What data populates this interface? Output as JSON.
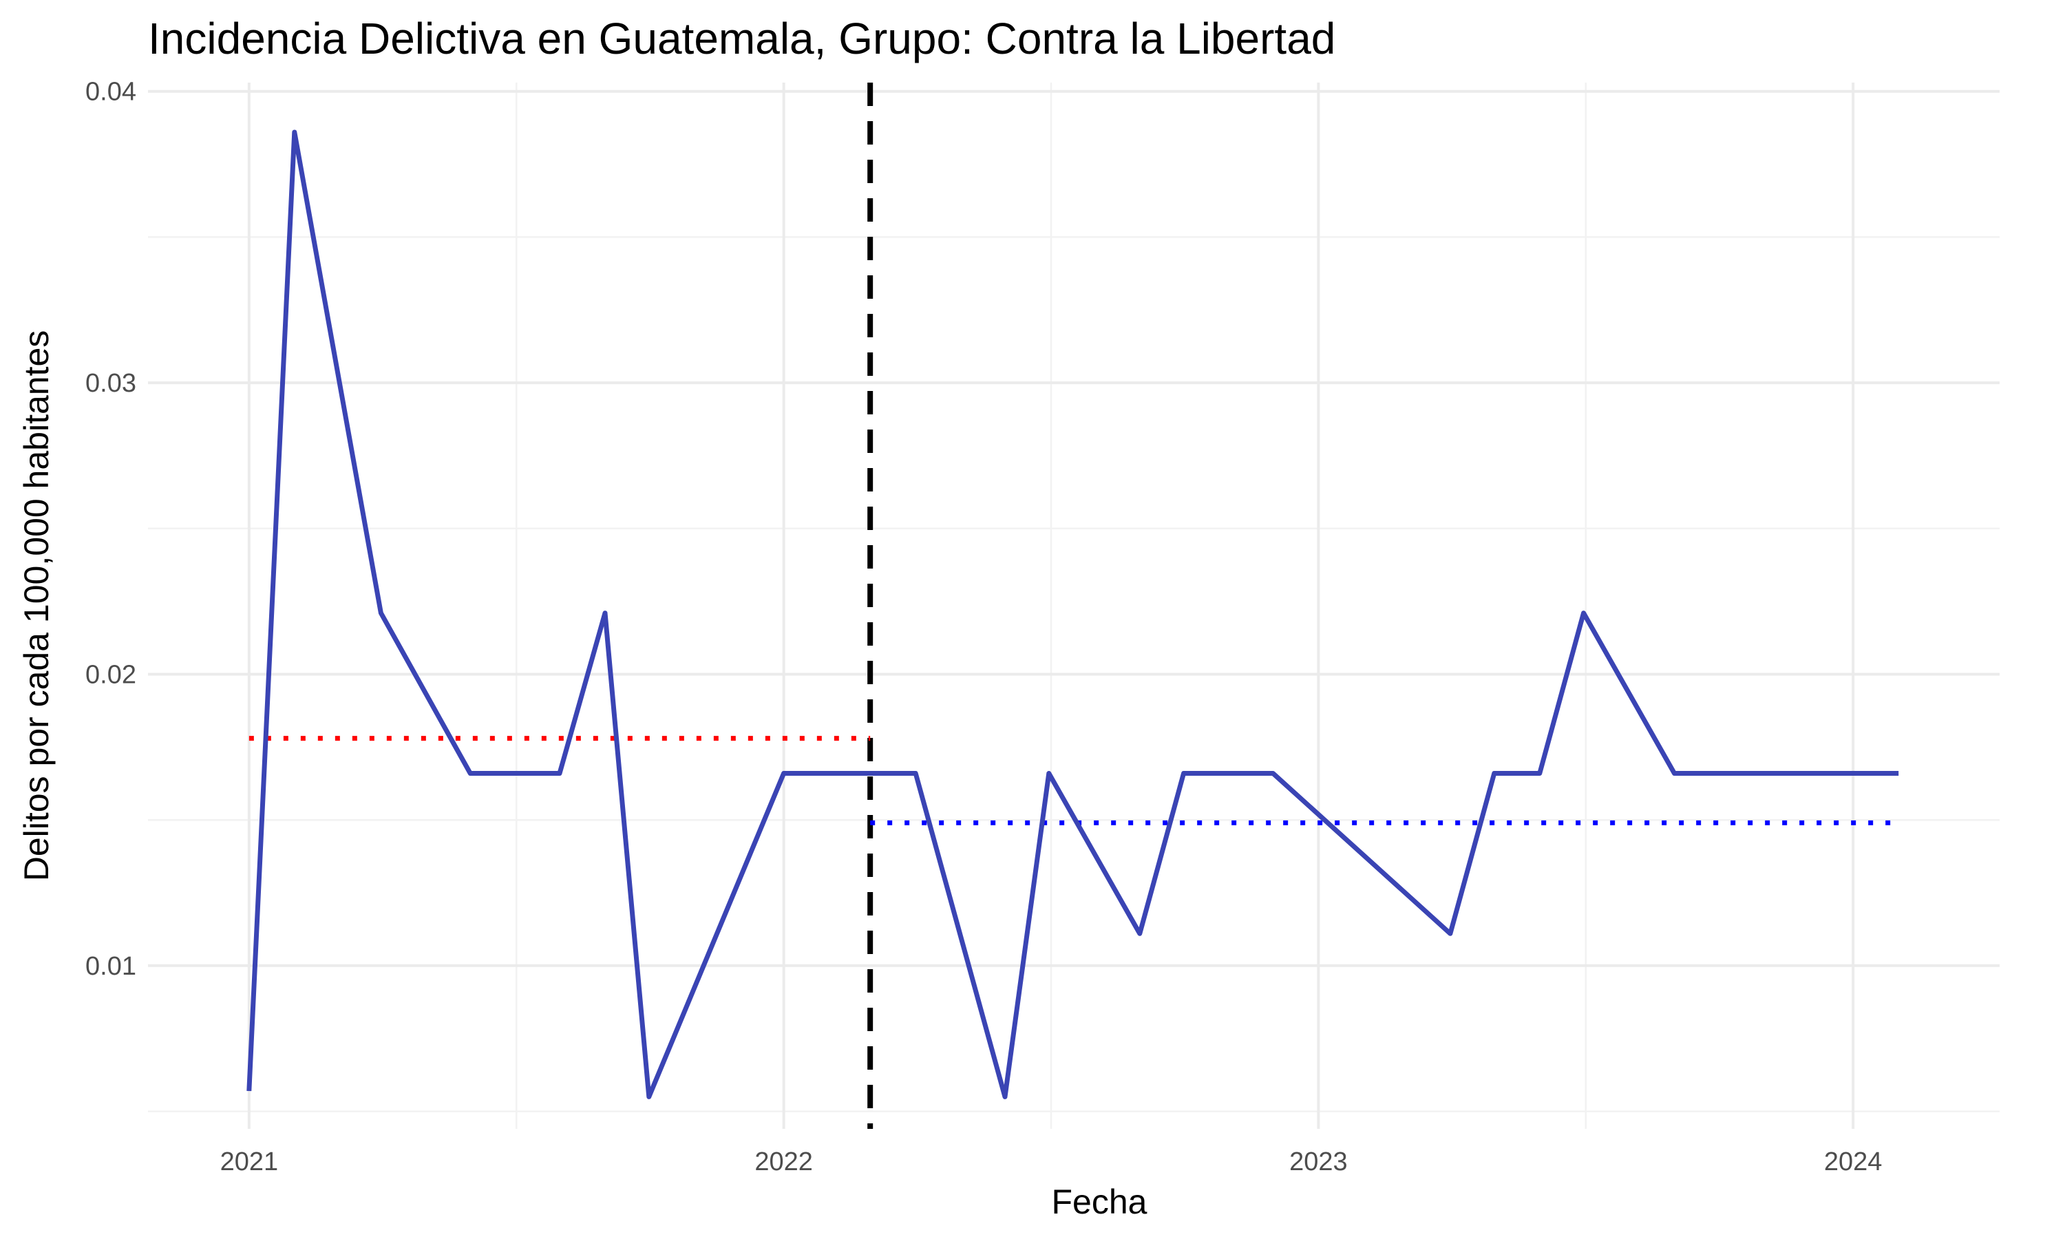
{
  "chart_data": {
    "type": "line",
    "title": "Incidencia Delictiva en Guatemala, Grupo: Contra la Libertad",
    "xlabel": "Fecha",
    "ylabel": "Delitos por cada 100,000 habitantes",
    "x_ticks": [
      "2021",
      "2022",
      "2023",
      "2024"
    ],
    "y_ticks": [
      "0.01",
      "0.02",
      "0.03",
      "0.04"
    ],
    "xlim": [
      "2020-10-24",
      "2024-04-10"
    ],
    "ylim": [
      0.0044,
      0.0403
    ],
    "grid": true,
    "legend": "none",
    "series": [
      {
        "color": "#3a44b4",
        "x": [
          "2021-01-01",
          "2021-02-01",
          "2021-04-01",
          "2021-06-01",
          "2021-08-01",
          "2021-09-01",
          "2021-10-01",
          "2022-01-01",
          "2022-02-01",
          "2022-03-01",
          "2022-04-01",
          "2022-06-01",
          "2022-07-01",
          "2022-09-01",
          "2022-10-01",
          "2022-12-01",
          "2023-04-01",
          "2023-05-01",
          "2023-06-01",
          "2023-07-01",
          "2023-09-01",
          "2023-10-01",
          "2024-02-01"
        ],
        "y": [
          0.0057,
          0.0386,
          0.0221,
          0.0166,
          0.0166,
          0.0221,
          0.0055,
          0.0166,
          0.0166,
          0.0166,
          0.0166,
          0.0055,
          0.0166,
          0.0111,
          0.0166,
          0.0166,
          0.0111,
          0.0166,
          0.0166,
          0.0221,
          0.0166,
          0.0166,
          0.0166
        ]
      }
    ],
    "reference_lines": [
      {
        "orientation": "vertical",
        "x": "2022-03-01",
        "style": "dashed",
        "color": "#000000"
      },
      {
        "orientation": "horizontal",
        "y": 0.0178,
        "x_start": "2021-01-01",
        "x_end": "2022-03-01",
        "style": "dotted",
        "color": "#ff0000"
      },
      {
        "orientation": "horizontal",
        "y": 0.0149,
        "x_start": "2022-03-01",
        "x_end": "2024-02-01",
        "style": "dotted",
        "color": "#0000ff"
      }
    ]
  }
}
